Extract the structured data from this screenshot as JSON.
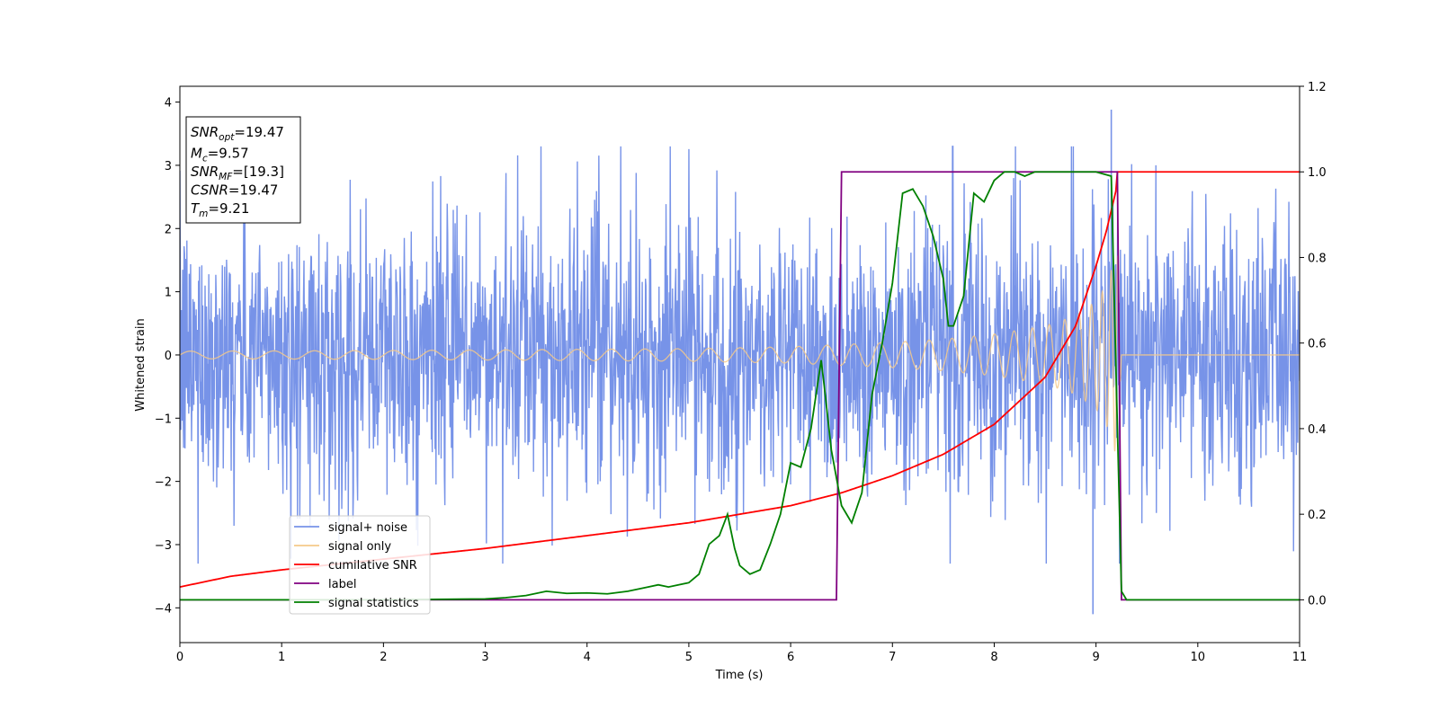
{
  "chart_data": {
    "type": "line",
    "xlabel": "Time (s)",
    "ylabel": "Whitened strain",
    "xlim": [
      0,
      11
    ],
    "ylim_left": [
      -4.55,
      4.25
    ],
    "ylim_right": [
      -0.1,
      1.2
    ],
    "x_ticks": [
      "0",
      "1",
      "2",
      "3",
      "4",
      "5",
      "6",
      "7",
      "8",
      "9",
      "10",
      "11"
    ],
    "y_left_ticks": [
      "4",
      "3",
      "2",
      "1",
      "0",
      "−1",
      "−2",
      "−3",
      "−4"
    ],
    "y_right_ticks": [
      "1.2",
      "1.0",
      "0.8",
      "0.6",
      "0.4",
      "0.2",
      "0.0"
    ],
    "grid": false,
    "legend_position": "lower-left",
    "annotation": {
      "lines": [
        {
          "main": "SNR",
          "sub": "opt",
          "value": "=19.47"
        },
        {
          "main": "M",
          "sub": "c",
          "value": "=9.57"
        },
        {
          "main": "SNR",
          "sub": "MF",
          "value": "=[19.3]"
        },
        {
          "main": "CSNR",
          "sub": "",
          "value": "=19.47"
        },
        {
          "main": "T",
          "sub": "m",
          "value": "=9.21"
        }
      ]
    },
    "series": [
      {
        "name": "signal+ noise",
        "color": "#7793e8",
        "axis": "left",
        "description_values": {
          "amplitude_core": 1.1,
          "peak_max": 3.88,
          "peak_max_x": 9.15,
          "trough_min": -4.1,
          "trough_min_x": 8.97
        }
      },
      {
        "name": "signal only",
        "color": "#f5c98a",
        "axis": "left",
        "envelope": {
          "x": [
            0,
            2,
            4,
            5,
            6,
            7,
            7.5,
            8,
            8.5,
            8.8,
            9.0,
            9.1,
            9.18,
            9.21,
            9.25,
            11
          ],
          "amp": [
            0.06,
            0.07,
            0.09,
            0.1,
            0.13,
            0.2,
            0.25,
            0.33,
            0.46,
            0.62,
            0.85,
            1.1,
            1.5,
            1.7,
            0,
            0
          ]
        }
      },
      {
        "name": "cumilative SNR",
        "color": "#ff0000",
        "axis": "right",
        "x": [
          0,
          0.5,
          1,
          2,
          3,
          4,
          5,
          6,
          6.5,
          7,
          7.5,
          8,
          8.5,
          8.8,
          9.0,
          9.1,
          9.2,
          9.21,
          11
        ],
        "y": [
          0.03,
          0.055,
          0.07,
          0.095,
          0.12,
          0.15,
          0.18,
          0.22,
          0.25,
          0.29,
          0.34,
          0.41,
          0.52,
          0.64,
          0.78,
          0.86,
          0.96,
          1.0,
          1.0
        ]
      },
      {
        "name": "label",
        "color": "#800080",
        "axis": "right",
        "x": [
          0,
          6.45,
          6.5,
          9.21,
          9.25,
          11
        ],
        "y": [
          0,
          0,
          1,
          1,
          0,
          0
        ]
      },
      {
        "name": "signal statistics",
        "color": "#008000",
        "axis": "right",
        "x": [
          0,
          1,
          2,
          3,
          3.2,
          3.4,
          3.6,
          3.8,
          4.0,
          4.2,
          4.4,
          4.6,
          4.7,
          4.8,
          5.0,
          5.1,
          5.2,
          5.3,
          5.38,
          5.45,
          5.5,
          5.6,
          5.7,
          5.8,
          5.9,
          6.0,
          6.1,
          6.2,
          6.3,
          6.33,
          6.4,
          6.5,
          6.6,
          6.7,
          6.8,
          6.9,
          7.0,
          7.1,
          7.2,
          7.3,
          7.4,
          7.5,
          7.55,
          7.6,
          7.7,
          7.8,
          7.9,
          8.0,
          8.1,
          8.2,
          8.3,
          8.4,
          8.6,
          9.0,
          9.15,
          9.2,
          9.25,
          9.3,
          11
        ],
        "y": [
          0,
          0,
          0,
          0.002,
          0.005,
          0.01,
          0.02,
          0.015,
          0.016,
          0.014,
          0.02,
          0.03,
          0.035,
          0.03,
          0.04,
          0.06,
          0.13,
          0.15,
          0.2,
          0.12,
          0.08,
          0.06,
          0.07,
          0.13,
          0.2,
          0.32,
          0.31,
          0.4,
          0.56,
          0.5,
          0.35,
          0.22,
          0.18,
          0.25,
          0.48,
          0.6,
          0.74,
          0.95,
          0.96,
          0.92,
          0.85,
          0.75,
          0.64,
          0.64,
          0.71,
          0.95,
          0.93,
          0.98,
          1.0,
          1.0,
          0.99,
          1.0,
          1.0,
          1.0,
          0.99,
          0.5,
          0.02,
          0.0,
          0.0
        ]
      }
    ]
  }
}
